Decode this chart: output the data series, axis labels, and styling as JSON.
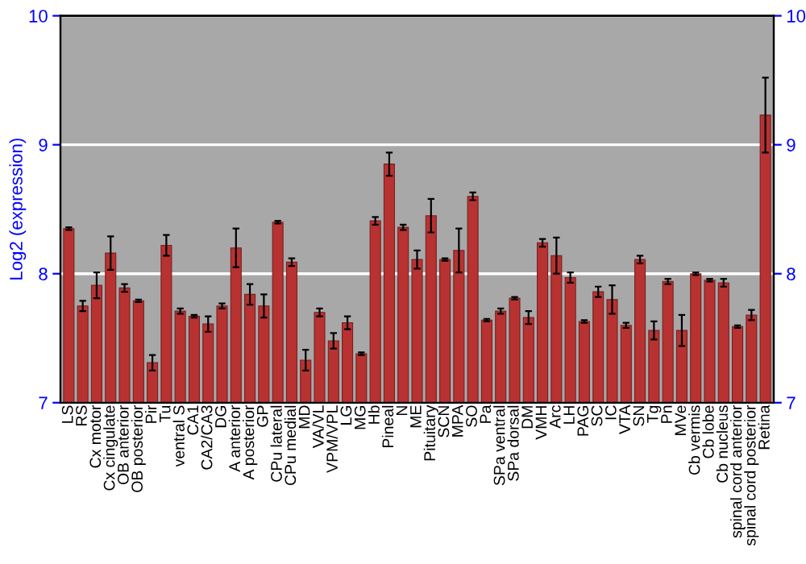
{
  "chart_data": {
    "type": "bar",
    "ylabel": "Log2 (expression)",
    "categories": [
      "LS",
      "RS",
      "Cx motor",
      "Cx cingulate",
      "OB anterior",
      "OB posterior",
      "Pir",
      "Tu",
      "ventral S",
      "CA1",
      "CA2/CA3",
      "DG",
      "A anterior",
      "A posterior",
      "GP",
      "CPu lateral",
      "CPu medial",
      "MD",
      "VA/VL",
      "VPM/VPL",
      "LG",
      "MG",
      "Hb",
      "Pineal",
      "N",
      "ME",
      "Pituitary",
      "SCN",
      "MPA",
      "SO",
      "Pa",
      "SPa ventral",
      "SPa dorsal",
      "DM",
      "VMH",
      "Arc",
      "LH",
      "PAG",
      "SC",
      "IC",
      "VTA",
      "SN",
      "Tg",
      "Pn",
      "MVe",
      "Cb vermis",
      "Cb lobe",
      "Cb nucleus",
      "spinal cord anterior",
      "spinal cord posterior",
      "Retina"
    ],
    "values": [
      8.35,
      7.75,
      7.91,
      8.16,
      7.89,
      7.79,
      7.31,
      8.22,
      7.71,
      7.67,
      7.61,
      7.75,
      8.2,
      7.84,
      7.75,
      8.4,
      8.09,
      7.33,
      7.7,
      7.48,
      7.62,
      7.38,
      8.41,
      8.85,
      8.36,
      8.11,
      8.45,
      8.11,
      8.18,
      8.6,
      7.64,
      7.71,
      7.81,
      7.66,
      8.24,
      8.14,
      7.97,
      7.63,
      7.86,
      7.8,
      7.6,
      8.11,
      7.56,
      7.94,
      7.56,
      8.0,
      7.95,
      7.93,
      7.59,
      7.68,
      9.23
    ],
    "errors": [
      0.01,
      0.04,
      0.1,
      0.13,
      0.03,
      0.01,
      0.06,
      0.08,
      0.02,
      0.01,
      0.06,
      0.02,
      0.15,
      0.08,
      0.09,
      0.01,
      0.03,
      0.08,
      0.03,
      0.06,
      0.05,
      0.01,
      0.03,
      0.09,
      0.02,
      0.07,
      0.13,
      0.01,
      0.17,
      0.03,
      0.01,
      0.02,
      0.01,
      0.05,
      0.03,
      0.14,
      0.04,
      0.01,
      0.04,
      0.11,
      0.02,
      0.03,
      0.07,
      0.02,
      0.12,
      0.01,
      0.01,
      0.03,
      0.01,
      0.04,
      0.29
    ],
    "color": "#b83232",
    "ylim": [
      7,
      10
    ],
    "yticks": [
      7,
      8,
      9,
      10
    ],
    "y2lim": [
      7,
      10
    ],
    "y2ticks": [
      7,
      8,
      9,
      10
    ],
    "grid": "y"
  }
}
